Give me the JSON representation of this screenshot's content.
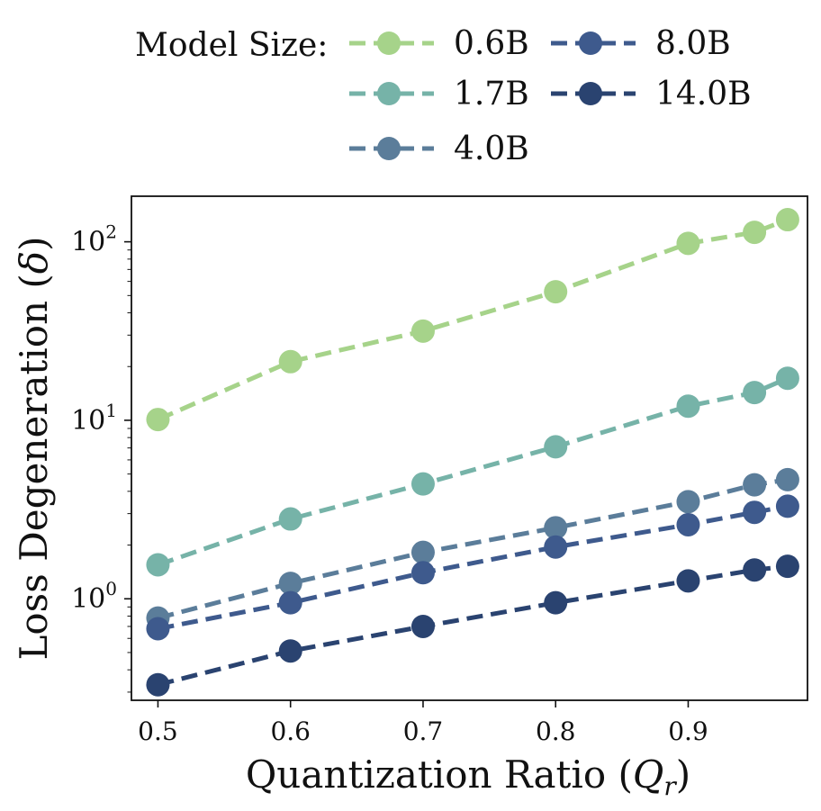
{
  "chart_data": {
    "type": "line",
    "title": "",
    "xlabel": "Quantization Ratio (Q_r)",
    "ylabel": "Loss Degeneration (δ)",
    "yscale": "log",
    "xlim": [
      0.48,
      0.99
    ],
    "ylim": [
      0.27,
      180
    ],
    "grid": false,
    "x_ticks": [
      0.5,
      0.6,
      0.7,
      0.8,
      0.9
    ],
    "x_tick_labels": [
      "0.5",
      "0.6",
      "0.7",
      "0.8",
      "0.9"
    ],
    "y_ticks": [
      1,
      10,
      100
    ],
    "y_tick_bases": [
      "10",
      "10",
      "10"
    ],
    "y_tick_exponents": [
      "0",
      "1",
      "2"
    ],
    "x": [
      0.5,
      0.6,
      0.7,
      0.8,
      0.9,
      0.95,
      0.975
    ],
    "legend": {
      "title": "Model Size:",
      "placement": "top"
    },
    "series": [
      {
        "name": "0.6B",
        "color": "#a6d38a",
        "values": [
          10.1,
          21.3,
          31.6,
          52.5,
          98,
          113,
          133
        ]
      },
      {
        "name": "1.7B",
        "color": "#76b3a8",
        "values": [
          1.55,
          2.8,
          4.4,
          7.1,
          12.0,
          14.3,
          17.2
        ]
      },
      {
        "name": "4.0B",
        "color": "#5b7d9a",
        "values": [
          0.78,
          1.22,
          1.82,
          2.5,
          3.5,
          4.35,
          4.65
        ]
      },
      {
        "name": "8.0B",
        "color": "#3e5a8d",
        "values": [
          0.68,
          0.95,
          1.4,
          1.95,
          2.6,
          3.05,
          3.3
        ]
      },
      {
        "name": "14.0B",
        "color": "#2a4370",
        "values": [
          0.33,
          0.51,
          0.7,
          0.95,
          1.26,
          1.45,
          1.52
        ]
      }
    ]
  }
}
